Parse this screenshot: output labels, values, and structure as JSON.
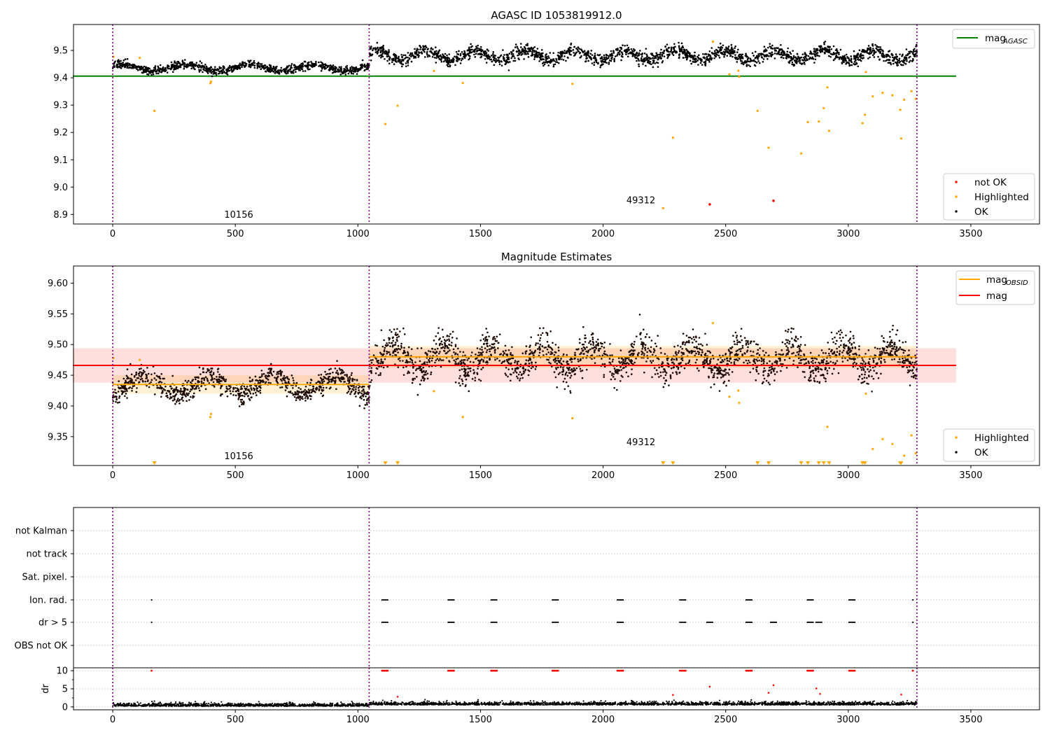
{
  "chart_data": [
    {
      "type": "scatter",
      "title": "AGASC ID 1053819912.0",
      "xlim": [
        -160,
        3780
      ],
      "ylim": [
        8.865,
        9.595
      ],
      "xticks": [
        0,
        500,
        1000,
        1500,
        2000,
        2500,
        3000,
        3500
      ],
      "xtick_labels": [
        "0",
        "500",
        "1000",
        "1500",
        "2000",
        "2500",
        "3000",
        "3500"
      ],
      "yticks": [
        8.9,
        9.0,
        9.1,
        9.2,
        9.3,
        9.4,
        9.5
      ],
      "ytick_labels": [
        "8.9",
        "9.0",
        "9.1",
        "9.2",
        "9.3",
        "9.4",
        "9.5"
      ],
      "obsid_boundaries": [
        0,
        1046,
        3280
      ],
      "obsid_labels": [
        {
          "text": "10156",
          "x": 455,
          "y": 8.888
        },
        {
          "text": "49312",
          "x": 2095,
          "y": 8.94
        }
      ],
      "mag_agasc": {
        "value": 9.406,
        "x_range": [
          0,
          3440
        ],
        "color": "#008000"
      },
      "ok_segments": [
        {
          "x_start": 0,
          "x_end": 1046,
          "center": 9.437,
          "amplitude": 0.012,
          "spread": 0.007,
          "periods": 4
        },
        {
          "x_start": 1046,
          "x_end": 3280,
          "center": 9.482,
          "amplitude": 0.018,
          "spread": 0.012,
          "periods": 11
        }
      ],
      "highlighted_points": [
        {
          "x": 3,
          "y": 9.477
        },
        {
          "x": 110,
          "y": 9.473
        },
        {
          "x": 170,
          "y": 9.279
        },
        {
          "x": 398,
          "y": 9.38
        },
        {
          "x": 401,
          "y": 9.386
        },
        {
          "x": 1112,
          "y": 9.231
        },
        {
          "x": 1162,
          "y": 9.298
        },
        {
          "x": 1310,
          "y": 9.425
        },
        {
          "x": 1428,
          "y": 9.381
        },
        {
          "x": 1875,
          "y": 9.378
        },
        {
          "x": 2245,
          "y": 8.923
        },
        {
          "x": 2285,
          "y": 9.181
        },
        {
          "x": 2448,
          "y": 9.532
        },
        {
          "x": 2515,
          "y": 9.413
        },
        {
          "x": 2552,
          "y": 9.426
        },
        {
          "x": 2555,
          "y": 9.404
        },
        {
          "x": 2630,
          "y": 9.279
        },
        {
          "x": 2675,
          "y": 9.144
        },
        {
          "x": 2808,
          "y": 9.123
        },
        {
          "x": 2835,
          "y": 9.238
        },
        {
          "x": 2880,
          "y": 9.24
        },
        {
          "x": 2900,
          "y": 9.289
        },
        {
          "x": 2915,
          "y": 9.365
        },
        {
          "x": 2922,
          "y": 9.206
        },
        {
          "x": 3058,
          "y": 9.234
        },
        {
          "x": 3068,
          "y": 9.265
        },
        {
          "x": 3072,
          "y": 9.421
        },
        {
          "x": 3100,
          "y": 9.332
        },
        {
          "x": 3140,
          "y": 9.345
        },
        {
          "x": 3180,
          "y": 9.336
        },
        {
          "x": 3212,
          "y": 9.283
        },
        {
          "x": 3216,
          "y": 9.178
        },
        {
          "x": 3228,
          "y": 9.32
        },
        {
          "x": 3258,
          "y": 9.351
        },
        {
          "x": 3275,
          "y": 9.323
        }
      ],
      "not_ok_points": [
        {
          "x": 2435,
          "y": 8.937
        },
        {
          "x": 2695,
          "y": 8.95
        }
      ],
      "legend_line": [
        {
          "label": "mag",
          "sub": "AGASC",
          "color": "#008000"
        }
      ],
      "legend_points": [
        {
          "label": "not OK",
          "color": "#ff0000"
        },
        {
          "label": "Highlighted",
          "color": "#ffa500"
        },
        {
          "label": "OK",
          "color": "#000000"
        }
      ]
    },
    {
      "type": "scatter",
      "title": "Magnitude Estimates",
      "xlim": [
        -160,
        3780
      ],
      "ylim": [
        9.303,
        9.628
      ],
      "xticks": [
        0,
        500,
        1000,
        1500,
        2000,
        2500,
        3000,
        3500
      ],
      "xtick_labels": [
        "0",
        "500",
        "1000",
        "1500",
        "2000",
        "2500",
        "3000",
        "3500"
      ],
      "yticks": [
        9.35,
        9.4,
        9.45,
        9.5,
        9.55,
        9.6
      ],
      "ytick_labels": [
        "9.35",
        "9.40",
        "9.45",
        "9.50",
        "9.55",
        "9.60"
      ],
      "obsid_boundaries": [
        0,
        1046,
        3280
      ],
      "obsid_labels": [
        {
          "text": "10156",
          "x": 455,
          "y": 9.313
        },
        {
          "text": "49312",
          "x": 2095,
          "y": 9.336
        }
      ],
      "mag": {
        "value": 9.466,
        "band": [
          9.438,
          9.494
        ],
        "x_range": [
          0,
          3440
        ],
        "color": "#ff0000"
      },
      "mag_obsid": [
        {
          "x_range": [
            0,
            1046
          ],
          "value": 9.435,
          "band": [
            9.42,
            9.45
          ]
        },
        {
          "x_range": [
            1046,
            3280
          ],
          "value": 9.48,
          "band": [
            9.462,
            9.498
          ]
        }
      ],
      "ok_segments": [
        {
          "x_start": 0,
          "x_end": 1046,
          "center": 9.434,
          "amplitude": 0.014,
          "spread": 0.009,
          "periods": 4
        },
        {
          "x_start": 1046,
          "x_end": 3280,
          "center": 9.478,
          "amplitude": 0.02,
          "spread": 0.014,
          "periods": 11
        }
      ],
      "highlighted_points": [
        {
          "x": 3,
          "y": 9.478
        },
        {
          "x": 110,
          "y": 9.475
        },
        {
          "x": 398,
          "y": 9.382
        },
        {
          "x": 401,
          "y": 9.387
        },
        {
          "x": 1310,
          "y": 9.424
        },
        {
          "x": 1428,
          "y": 9.382
        },
        {
          "x": 1875,
          "y": 9.38
        },
        {
          "x": 2448,
          "y": 9.535
        },
        {
          "x": 2515,
          "y": 9.415
        },
        {
          "x": 2552,
          "y": 9.425
        },
        {
          "x": 2555,
          "y": 9.405
        },
        {
          "x": 2915,
          "y": 9.366
        },
        {
          "x": 3072,
          "y": 9.42
        },
        {
          "x": 3100,
          "y": 9.33
        },
        {
          "x": 3140,
          "y": 9.346
        },
        {
          "x": 3180,
          "y": 9.338
        },
        {
          "x": 3228,
          "y": 9.319
        },
        {
          "x": 3258,
          "y": 9.352
        },
        {
          "x": 3275,
          "y": 9.323
        }
      ],
      "below_range_markers": [
        170,
        1112,
        1162,
        2245,
        2285,
        2630,
        2675,
        2808,
        2835,
        2880,
        2900,
        2922,
        3058,
        3068,
        3212,
        3216
      ],
      "legend_line": [
        {
          "label": "mag",
          "sub": "OBSID",
          "color": "#ffa500"
        },
        {
          "label": "mag",
          "sub": "",
          "color": "#ff0000"
        }
      ],
      "legend_points": [
        {
          "label": "Highlighted",
          "color": "#ffa500"
        },
        {
          "label": "OK",
          "color": "#000000"
        }
      ]
    },
    {
      "type": "scatter",
      "title": "",
      "xlim": [
        -160,
        3780
      ],
      "categories": [
        "not Kalman",
        "not track",
        "Sat. pixel.",
        "Ion. rad.",
        "dr > 5",
        "OBS not OK"
      ],
      "obsid_boundaries": [
        0,
        1046,
        3280
      ],
      "flag_clusters": [
        {
          "flag": "Ion. rad.",
          "x": [
            170,
            1110,
            1380,
            1555,
            1805,
            2070,
            2325,
            2595,
            2845,
            3015,
            3275
          ]
        },
        {
          "flag": "dr > 5",
          "x": [
            170,
            1110,
            1380,
            1555,
            1805,
            2070,
            2325,
            2435,
            2595,
            2695,
            2845,
            2880,
            3015,
            3275
          ]
        }
      ]
    },
    {
      "type": "scatter",
      "title": "",
      "ylabel": "dr",
      "xlim": [
        -160,
        3780
      ],
      "ylim": [
        -0.8,
        10.8
      ],
      "xticks": [
        0,
        500,
        1000,
        1500,
        2000,
        2500,
        3000,
        3500
      ],
      "xtick_labels": [
        "0",
        "500",
        "1000",
        "1500",
        "2000",
        "2500",
        "3000",
        "3500"
      ],
      "yticks": [
        0,
        5,
        10
      ],
      "ytick_labels": [
        "0",
        "5",
        "10"
      ],
      "obsid_boundaries": [
        0,
        1046,
        3280
      ],
      "dr_at_cap_clusters": [
        170,
        1110,
        1380,
        1555,
        1805,
        2070,
        2325,
        2595,
        2845,
        3015,
        3275
      ],
      "red_points": [
        {
          "x": 1162,
          "y": 2.8
        },
        {
          "x": 2285,
          "y": 3.3
        },
        {
          "x": 2435,
          "y": 5.6
        },
        {
          "x": 2675,
          "y": 3.9
        },
        {
          "x": 2695,
          "y": 6.0
        },
        {
          "x": 2870,
          "y": 5.1
        },
        {
          "x": 2885,
          "y": 3.6
        },
        {
          "x": 3216,
          "y": 3.4
        }
      ],
      "black_baseline": {
        "x_range": [
          0,
          3280
        ],
        "value": 0.4,
        "spread": 0.5
      }
    }
  ]
}
